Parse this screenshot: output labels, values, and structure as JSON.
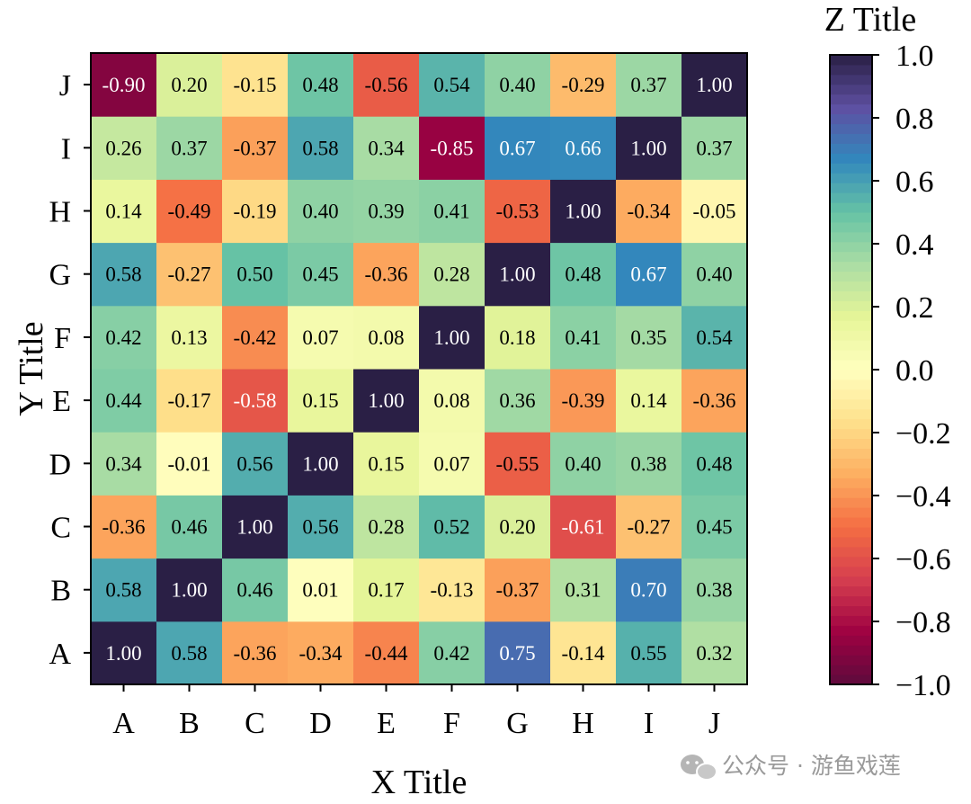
{
  "chart_data": {
    "type": "heatmap",
    "xlabel": "X Title",
    "ylabel": "Y Title",
    "colorbar_label": "Z Title",
    "x_categories": [
      "A",
      "B",
      "C",
      "D",
      "E",
      "F",
      "G",
      "H",
      "I",
      "J"
    ],
    "y_categories": [
      "A",
      "B",
      "C",
      "D",
      "E",
      "F",
      "G",
      "H",
      "I",
      "J"
    ],
    "values": [
      [
        1.0,
        0.58,
        -0.36,
        -0.34,
        -0.44,
        0.42,
        0.75,
        -0.14,
        0.55,
        0.32
      ],
      [
        0.58,
        1.0,
        0.46,
        0.01,
        0.17,
        -0.13,
        -0.37,
        0.31,
        0.7,
        0.38
      ],
      [
        -0.36,
        0.46,
        1.0,
        0.56,
        0.28,
        0.52,
        0.2,
        -0.61,
        -0.27,
        0.45
      ],
      [
        0.34,
        -0.01,
        0.56,
        1.0,
        0.15,
        0.07,
        -0.55,
        0.4,
        0.38,
        0.48
      ],
      [
        0.44,
        -0.17,
        -0.58,
        0.15,
        1.0,
        0.08,
        0.36,
        -0.39,
        0.14,
        -0.36
      ],
      [
        0.42,
        0.13,
        -0.42,
        0.07,
        0.08,
        1.0,
        0.18,
        0.41,
        0.35,
        0.54
      ],
      [
        0.58,
        -0.27,
        0.5,
        0.45,
        -0.36,
        0.28,
        1.0,
        0.48,
        0.67,
        0.4
      ],
      [
        0.14,
        -0.49,
        -0.19,
        0.4,
        0.39,
        0.41,
        -0.53,
        1.0,
        -0.34,
        -0.05
      ],
      [
        0.26,
        0.37,
        -0.37,
        0.58,
        0.34,
        -0.85,
        0.67,
        0.66,
        1.0,
        0.37
      ],
      [
        -0.9,
        0.2,
        -0.15,
        0.48,
        -0.56,
        0.54,
        0.4,
        -0.29,
        0.37,
        1.0
      ]
    ],
    "zlim": [
      -1.0,
      1.0
    ],
    "colorbar_ticks": [
      1.0,
      0.8,
      0.6,
      0.4,
      0.2,
      0.0,
      -0.2,
      -0.4,
      -0.6,
      -0.8,
      -1.0
    ],
    "colorbar_tick_labels": [
      "1.0",
      "0.8",
      "0.6",
      "0.4",
      "0.2",
      "0.0",
      "−0.2",
      "−0.4",
      "−0.6",
      "−0.8",
      "−1.0"
    ],
    "colormap": "Spectral",
    "colormap_stops": [
      "#5e0b3d",
      "#9e0142",
      "#d53e4f",
      "#f46d43",
      "#fdae61",
      "#fee08b",
      "#ffffbf",
      "#e6f598",
      "#abdda4",
      "#66c2a5",
      "#3288bd",
      "#5e4fa2",
      "#2a1f45"
    ]
  },
  "watermark": "公众号 · 游鱼戏莲"
}
